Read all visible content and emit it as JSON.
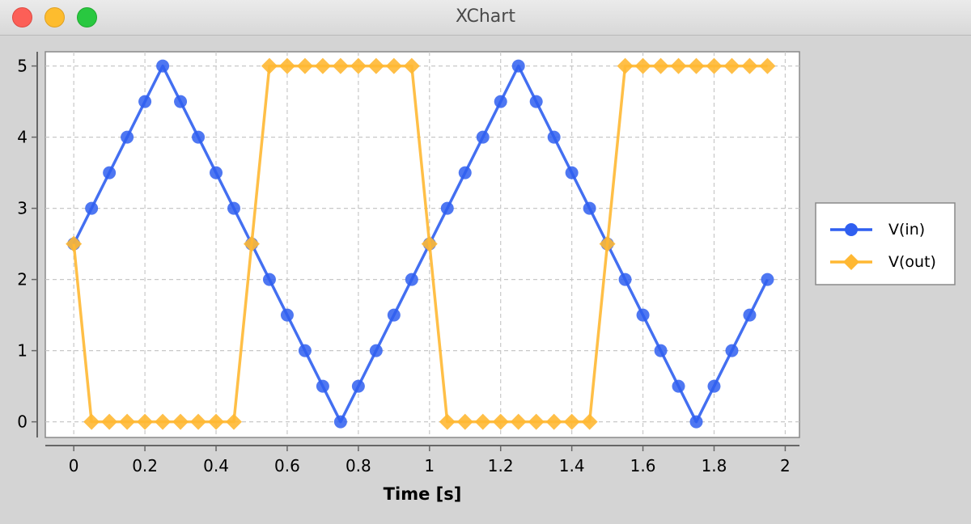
{
  "window": {
    "title": "XChart",
    "controls": [
      "close",
      "minimize",
      "zoom"
    ]
  },
  "colors": {
    "vin": "#2f5ff0",
    "vout": "#ffb833",
    "grid": "#c8c8c8",
    "plot_bg": "#ffffff",
    "bg": "#d4d4d4"
  },
  "chart_data": {
    "type": "line",
    "title": "",
    "xlabel": "Time [s]",
    "ylabel": "",
    "xlim": [
      -0.08,
      2.04
    ],
    "ylim": [
      -0.22,
      5.2
    ],
    "xticks": [
      0,
      0.2,
      0.4,
      0.6,
      0.8,
      1,
      1.2,
      1.4,
      1.6,
      1.8,
      2
    ],
    "xtick_labels": [
      "0",
      "0.2",
      "0.4",
      "0.6",
      "0.8",
      "1",
      "1.2",
      "1.4",
      "1.6",
      "1.8",
      "2"
    ],
    "yticks": [
      0,
      1,
      2,
      3,
      4,
      5
    ],
    "ytick_labels": [
      "0",
      "1",
      "2",
      "3",
      "4",
      "5"
    ],
    "grid": true,
    "legend_position": "right",
    "x": [
      0,
      0.05,
      0.1,
      0.15,
      0.2,
      0.25,
      0.3,
      0.35,
      0.4,
      0.45,
      0.5,
      0.55,
      0.6,
      0.65,
      0.7,
      0.75,
      0.8,
      0.85,
      0.9,
      0.95,
      1.0,
      1.05,
      1.1,
      1.15,
      1.2,
      1.25,
      1.3,
      1.35,
      1.4,
      1.45,
      1.5,
      1.55,
      1.6,
      1.65,
      1.7,
      1.75,
      1.8,
      1.85,
      1.9,
      1.95
    ],
    "series": [
      {
        "name": "V(in)",
        "marker": "circle",
        "values": [
          2.5,
          3,
          3.5,
          4,
          4.5,
          5,
          4.5,
          4,
          3.5,
          3,
          2.5,
          2,
          1.5,
          1,
          0.5,
          0,
          0.5,
          1,
          1.5,
          2,
          2.5,
          3,
          3.5,
          4,
          4.5,
          5,
          4.5,
          4,
          3.5,
          3,
          2.5,
          2,
          1.5,
          1,
          0.5,
          0,
          0.5,
          1,
          1.5,
          2
        ]
      },
      {
        "name": "V(out)",
        "marker": "diamond",
        "values": [
          2.5,
          0,
          0,
          0,
          0,
          0,
          0,
          0,
          0,
          0,
          2.5,
          5,
          5,
          5,
          5,
          5,
          5,
          5,
          5,
          5,
          2.5,
          0,
          0,
          0,
          0,
          0,
          0,
          0,
          0,
          0,
          2.5,
          5,
          5,
          5,
          5,
          5,
          5,
          5,
          5,
          5
        ]
      }
    ]
  }
}
